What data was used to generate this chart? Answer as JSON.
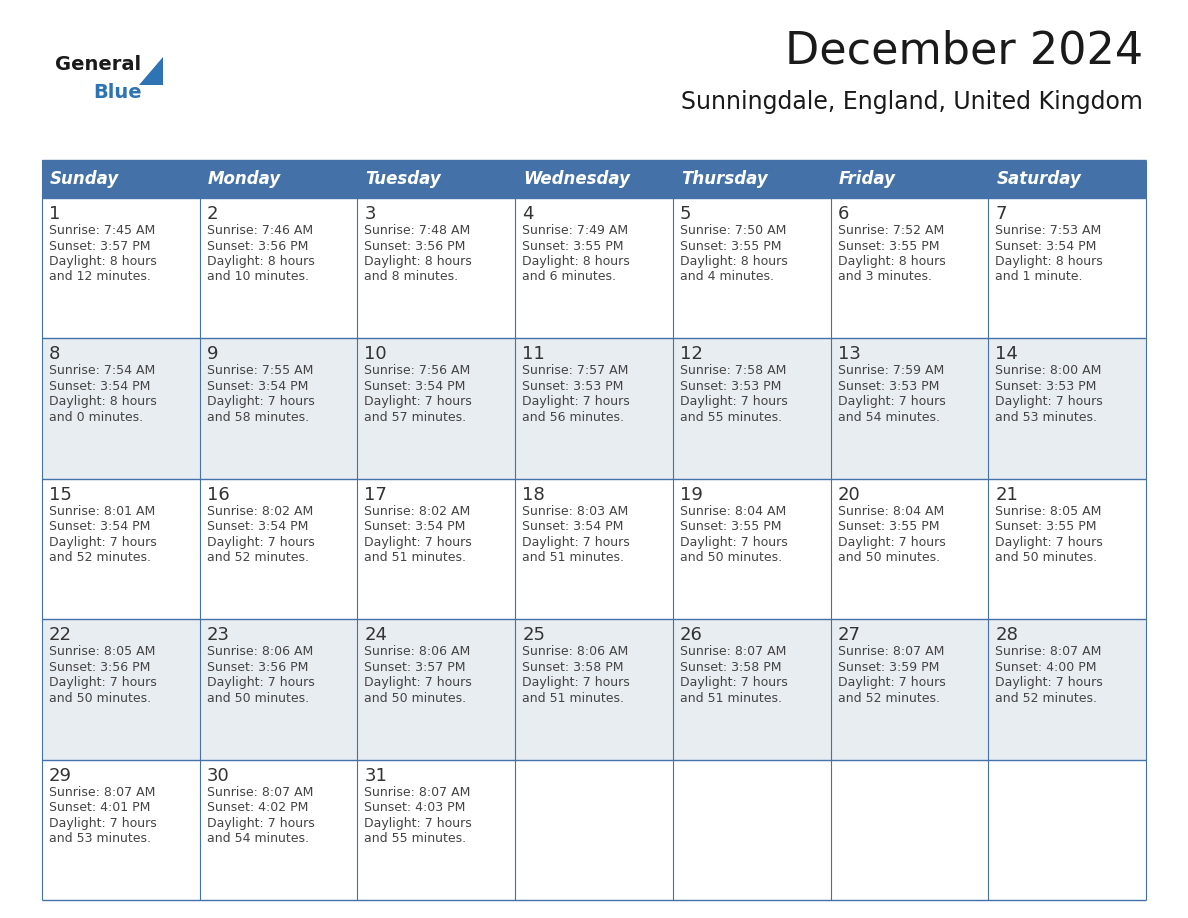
{
  "title": "December 2024",
  "subtitle": "Sunningdale, England, United Kingdom",
  "days_of_week": [
    "Sunday",
    "Monday",
    "Tuesday",
    "Wednesday",
    "Thursday",
    "Friday",
    "Saturday"
  ],
  "header_bg": "#4472a8",
  "header_text_color": "#FFFFFF",
  "cell_bg_white": "#FFFFFF",
  "cell_bg_gray": "#e8edf2",
  "day_num_color": "#333333",
  "detail_text_color": "#444444",
  "grid_color": "#4472a8",
  "title_color": "#1a1a1a",
  "subtitle_color": "#1a1a1a",
  "logo_general_color": "#1a1a1a",
  "logo_blue_color": "#2e74b5",
  "title_fontsize": 32,
  "subtitle_fontsize": 17,
  "header_fontsize": 12,
  "date_fontsize": 13,
  "detail_fontsize": 9,
  "weeks": [
    {
      "bg": "white",
      "days": [
        {
          "date": 1,
          "sunrise": "7:45 AM",
          "sunset": "3:57 PM",
          "daylight_hours": 8,
          "daylight_minutes": 12
        },
        {
          "date": 2,
          "sunrise": "7:46 AM",
          "sunset": "3:56 PM",
          "daylight_hours": 8,
          "daylight_minutes": 10
        },
        {
          "date": 3,
          "sunrise": "7:48 AM",
          "sunset": "3:56 PM",
          "daylight_hours": 8,
          "daylight_minutes": 8
        },
        {
          "date": 4,
          "sunrise": "7:49 AM",
          "sunset": "3:55 PM",
          "daylight_hours": 8,
          "daylight_minutes": 6
        },
        {
          "date": 5,
          "sunrise": "7:50 AM",
          "sunset": "3:55 PM",
          "daylight_hours": 8,
          "daylight_minutes": 4
        },
        {
          "date": 6,
          "sunrise": "7:52 AM",
          "sunset": "3:55 PM",
          "daylight_hours": 8,
          "daylight_minutes": 3
        },
        {
          "date": 7,
          "sunrise": "7:53 AM",
          "sunset": "3:54 PM",
          "daylight_hours": 8,
          "daylight_minutes": 1
        }
      ]
    },
    {
      "bg": "gray",
      "days": [
        {
          "date": 8,
          "sunrise": "7:54 AM",
          "sunset": "3:54 PM",
          "daylight_hours": 8,
          "daylight_minutes": 0
        },
        {
          "date": 9,
          "sunrise": "7:55 AM",
          "sunset": "3:54 PM",
          "daylight_hours": 7,
          "daylight_minutes": 58
        },
        {
          "date": 10,
          "sunrise": "7:56 AM",
          "sunset": "3:54 PM",
          "daylight_hours": 7,
          "daylight_minutes": 57
        },
        {
          "date": 11,
          "sunrise": "7:57 AM",
          "sunset": "3:53 PM",
          "daylight_hours": 7,
          "daylight_minutes": 56
        },
        {
          "date": 12,
          "sunrise": "7:58 AM",
          "sunset": "3:53 PM",
          "daylight_hours": 7,
          "daylight_minutes": 55
        },
        {
          "date": 13,
          "sunrise": "7:59 AM",
          "sunset": "3:53 PM",
          "daylight_hours": 7,
          "daylight_minutes": 54
        },
        {
          "date": 14,
          "sunrise": "8:00 AM",
          "sunset": "3:53 PM",
          "daylight_hours": 7,
          "daylight_minutes": 53
        }
      ]
    },
    {
      "bg": "white",
      "days": [
        {
          "date": 15,
          "sunrise": "8:01 AM",
          "sunset": "3:54 PM",
          "daylight_hours": 7,
          "daylight_minutes": 52
        },
        {
          "date": 16,
          "sunrise": "8:02 AM",
          "sunset": "3:54 PM",
          "daylight_hours": 7,
          "daylight_minutes": 52
        },
        {
          "date": 17,
          "sunrise": "8:02 AM",
          "sunset": "3:54 PM",
          "daylight_hours": 7,
          "daylight_minutes": 51
        },
        {
          "date": 18,
          "sunrise": "8:03 AM",
          "sunset": "3:54 PM",
          "daylight_hours": 7,
          "daylight_minutes": 51
        },
        {
          "date": 19,
          "sunrise": "8:04 AM",
          "sunset": "3:55 PM",
          "daylight_hours": 7,
          "daylight_minutes": 50
        },
        {
          "date": 20,
          "sunrise": "8:04 AM",
          "sunset": "3:55 PM",
          "daylight_hours": 7,
          "daylight_minutes": 50
        },
        {
          "date": 21,
          "sunrise": "8:05 AM",
          "sunset": "3:55 PM",
          "daylight_hours": 7,
          "daylight_minutes": 50
        }
      ]
    },
    {
      "bg": "gray",
      "days": [
        {
          "date": 22,
          "sunrise": "8:05 AM",
          "sunset": "3:56 PM",
          "daylight_hours": 7,
          "daylight_minutes": 50
        },
        {
          "date": 23,
          "sunrise": "8:06 AM",
          "sunset": "3:56 PM",
          "daylight_hours": 7,
          "daylight_minutes": 50
        },
        {
          "date": 24,
          "sunrise": "8:06 AM",
          "sunset": "3:57 PM",
          "daylight_hours": 7,
          "daylight_minutes": 50
        },
        {
          "date": 25,
          "sunrise": "8:06 AM",
          "sunset": "3:58 PM",
          "daylight_hours": 7,
          "daylight_minutes": 51
        },
        {
          "date": 26,
          "sunrise": "8:07 AM",
          "sunset": "3:58 PM",
          "daylight_hours": 7,
          "daylight_minutes": 51
        },
        {
          "date": 27,
          "sunrise": "8:07 AM",
          "sunset": "3:59 PM",
          "daylight_hours": 7,
          "daylight_minutes": 52
        },
        {
          "date": 28,
          "sunrise": "8:07 AM",
          "sunset": "4:00 PM",
          "daylight_hours": 7,
          "daylight_minutes": 52
        }
      ]
    },
    {
      "bg": "white",
      "days": [
        {
          "date": 29,
          "sunrise": "8:07 AM",
          "sunset": "4:01 PM",
          "daylight_hours": 7,
          "daylight_minutes": 53
        },
        {
          "date": 30,
          "sunrise": "8:07 AM",
          "sunset": "4:02 PM",
          "daylight_hours": 7,
          "daylight_minutes": 54
        },
        {
          "date": 31,
          "sunrise": "8:07 AM",
          "sunset": "4:03 PM",
          "daylight_hours": 7,
          "daylight_minutes": 55
        },
        null,
        null,
        null,
        null
      ]
    }
  ]
}
